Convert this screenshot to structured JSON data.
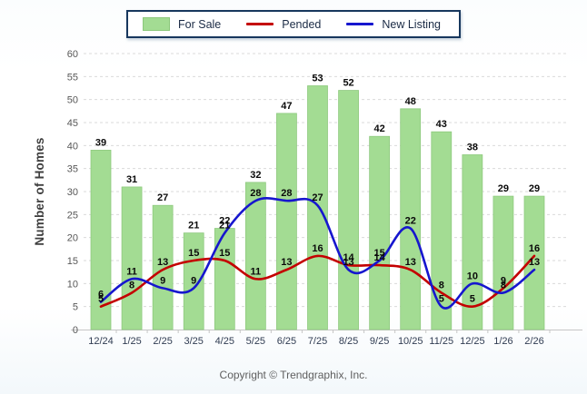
{
  "chart_data": {
    "type": "bar",
    "title": "",
    "xlabel": "",
    "ylabel": "Number of Homes",
    "ylim": [
      0,
      60
    ],
    "ytick_step": 5,
    "grid": true,
    "legend_position": "top",
    "categories": [
      "12/24",
      "1/25",
      "2/25",
      "3/25",
      "4/25",
      "5/25",
      "6/25",
      "7/25",
      "8/25",
      "9/25",
      "10/25",
      "11/25",
      "12/25",
      "1/26",
      "2/26"
    ],
    "series": [
      {
        "name": "For Sale",
        "type": "bar",
        "color": "#a3dc93",
        "border_color": "#8cc87c",
        "values": [
          39,
          31,
          27,
          21,
          22,
          32,
          47,
          53,
          52,
          42,
          48,
          43,
          38,
          29,
          29
        ]
      },
      {
        "name": "Pended",
        "type": "line",
        "color": "#c40000",
        "values": [
          5,
          8,
          13,
          15,
          15,
          11,
          13,
          16,
          14,
          14,
          13,
          8,
          5,
          9,
          16
        ]
      },
      {
        "name": "New Listing",
        "type": "line",
        "color": "#1616ce",
        "values": [
          6,
          11,
          9,
          9,
          21,
          28,
          28,
          27,
          13,
          15,
          22,
          5,
          10,
          8,
          13
        ]
      }
    ]
  },
  "footer": {
    "copyright": "Copyright © Trendgraphix, Inc."
  }
}
